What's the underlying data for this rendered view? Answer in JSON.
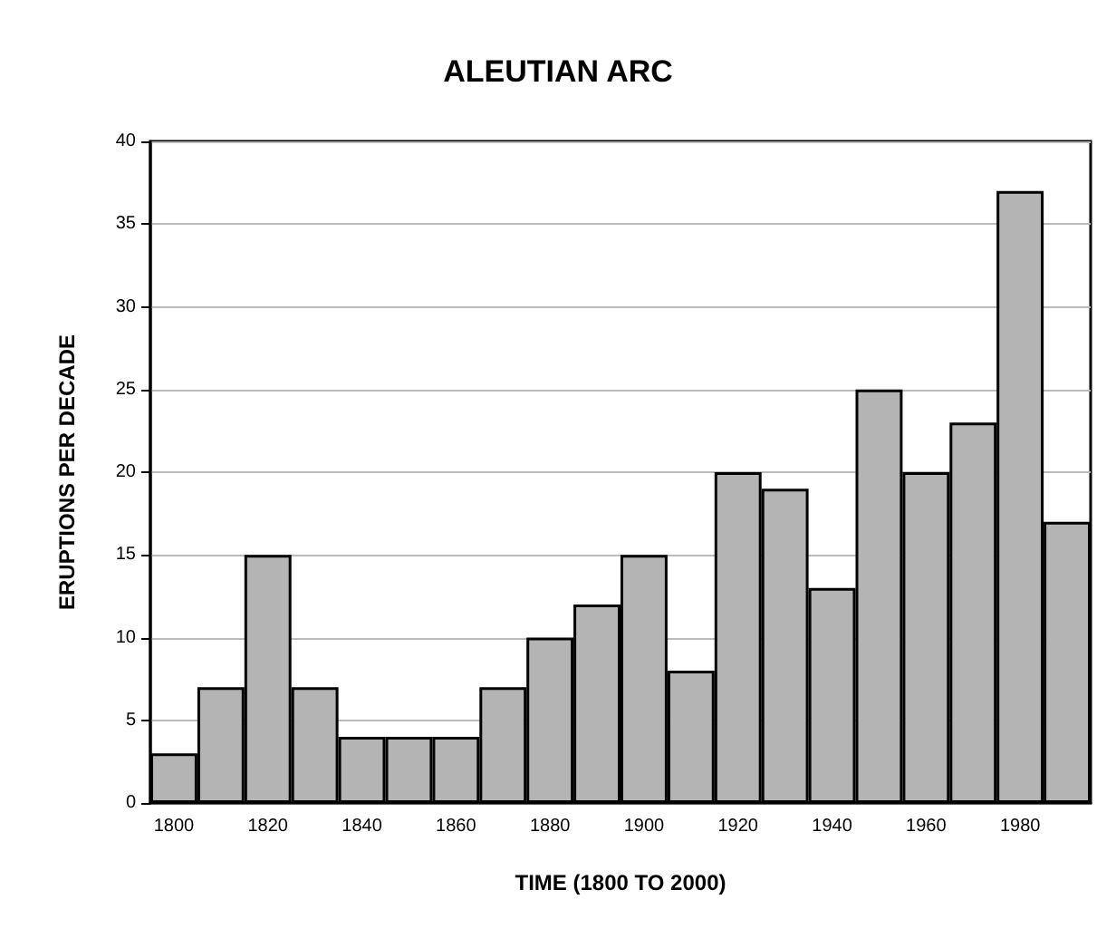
{
  "chart_data": {
    "type": "bar",
    "title": "ALEUTIAN ARC",
    "xlabel": "TIME (1800 TO 2000)",
    "ylabel": "ERUPTIONS PER DECADE",
    "categories": [
      "1800",
      null,
      "1820",
      null,
      "1840",
      null,
      "1860",
      null,
      "1880",
      null,
      "1900",
      null,
      "1920",
      null,
      "1940",
      null,
      "1960",
      null,
      "1980",
      null
    ],
    "values": [
      3,
      7,
      15,
      7,
      4,
      4,
      4,
      7,
      10,
      12,
      15,
      8,
      20,
      19,
      13,
      25,
      20,
      23,
      37,
      17
    ],
    "color": "#b4b4b4",
    "ylim": [
      0,
      40
    ],
    "yticks": [
      0,
      5,
      10,
      15,
      20,
      25,
      30,
      35,
      40
    ],
    "grid": "y"
  }
}
